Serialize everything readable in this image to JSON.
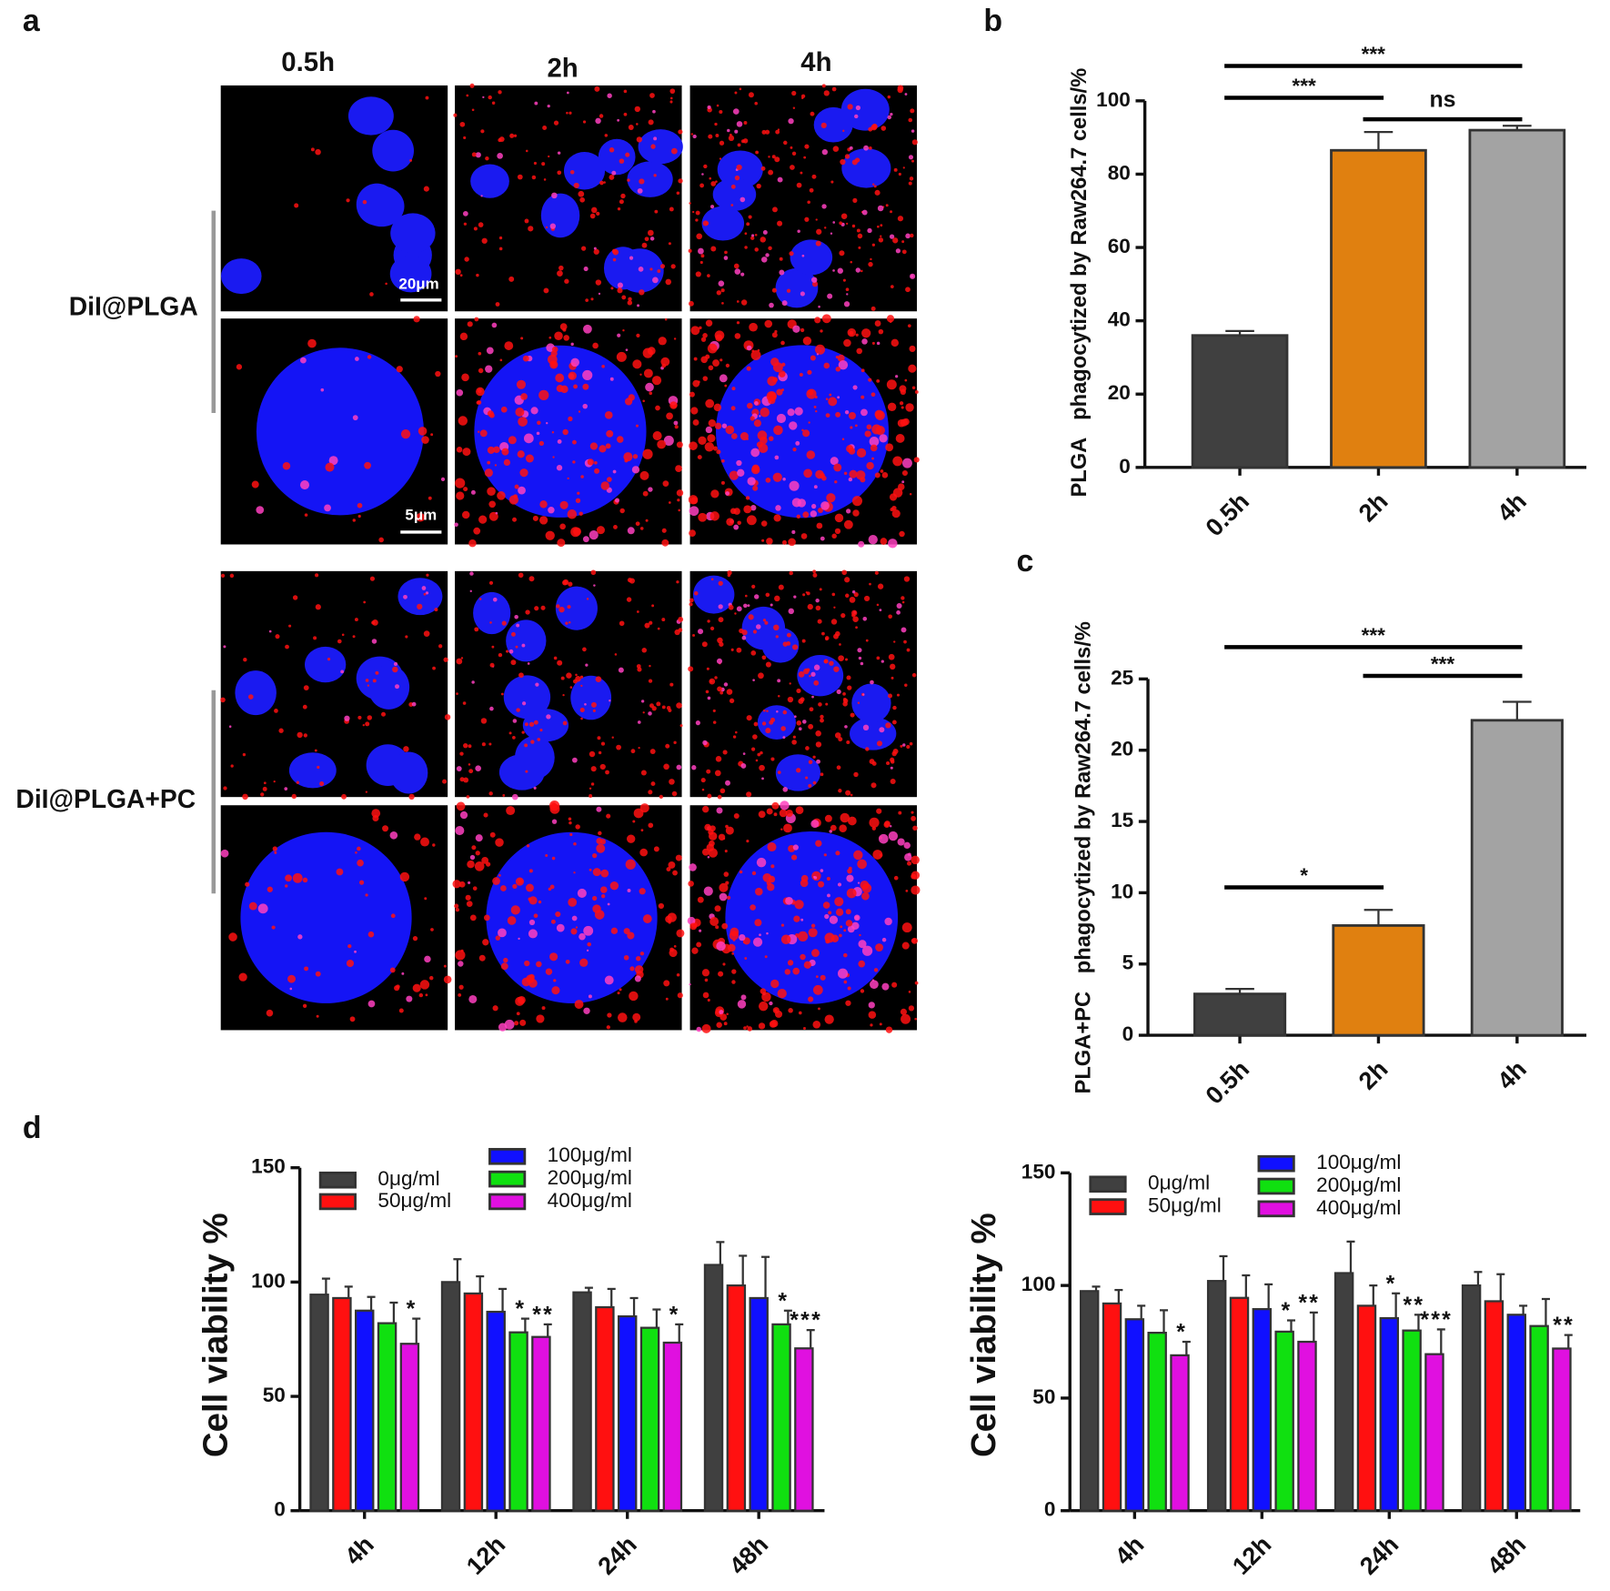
{
  "panel_labels": [
    "a",
    "b",
    "c",
    "d"
  ],
  "panel_a": {
    "columns": [
      "0.5h",
      "2h",
      "4h"
    ],
    "rows": [
      "DiI@PLGA",
      "DiI@PLGA+PC"
    ],
    "scale_bars": [
      "20μm",
      "5μm"
    ]
  },
  "chart_data": [
    {
      "type": "bar",
      "ylabel": "PLGA   phagocytized by Raw264.7 cells/%",
      "categories": [
        "0.5h",
        "2h",
        "4h"
      ],
      "values": [
        36,
        86.5,
        92
      ],
      "errors": [
        1.2,
        5,
        1.2
      ],
      "colors": [
        "#404040",
        "#e08010",
        "#a3a3a3"
      ],
      "ylim": [
        0,
        100
      ],
      "yticks": [
        0,
        20,
        40,
        60,
        80,
        100
      ],
      "comparisons": [
        {
          "label": "***",
          "between": [
            "0.5h",
            "4h"
          ]
        },
        {
          "label": "***",
          "between": [
            "0.5h",
            "2h"
          ]
        },
        {
          "label": "ns",
          "between": [
            "2h",
            "4h"
          ]
        }
      ]
    },
    {
      "type": "bar",
      "ylabel": "PLGA+PC   phagocytized by Raw264.7 cells/%",
      "categories": [
        "0.5h",
        "2h",
        "4h"
      ],
      "values": [
        2.9,
        7.7,
        22.1
      ],
      "errors": [
        0.35,
        1.1,
        1.3
      ],
      "colors": [
        "#404040",
        "#e08010",
        "#a3a3a3"
      ],
      "ylim": [
        0,
        25
      ],
      "yticks": [
        0,
        5,
        10,
        15,
        20,
        25
      ],
      "comparisons": [
        {
          "label": "***",
          "between": [
            "0.5h",
            "4h"
          ]
        },
        {
          "label": "***",
          "between": [
            "2h",
            "4h"
          ]
        },
        {
          "label": "*",
          "between": [
            "0.5h",
            "2h"
          ]
        }
      ]
    },
    {
      "type": "grouped-bar",
      "ylabel": "Cell viability %",
      "categories": [
        "4h",
        "12h",
        "24h",
        "48h"
      ],
      "ylim": [
        0,
        150
      ],
      "yticks": [
        0,
        50,
        100,
        150
      ],
      "series": [
        {
          "name": "0μg/ml",
          "color": "#404040",
          "values": [
            94.5,
            100,
            95.5,
            107.5
          ],
          "errors": [
            7,
            10,
            2,
            10
          ],
          "significance": [
            null,
            null,
            null,
            null
          ]
        },
        {
          "name": "50μg/ml",
          "color": "#ff1010",
          "values": [
            93,
            95,
            89,
            98.5
          ],
          "errors": [
            5,
            7.5,
            8,
            13
          ],
          "significance": [
            null,
            null,
            null,
            null
          ]
        },
        {
          "name": "100μg/ml",
          "color": "#1010ff",
          "values": [
            87.5,
            87,
            85,
            93
          ],
          "errors": [
            6,
            10,
            8,
            18
          ],
          "significance": [
            null,
            null,
            null,
            null
          ]
        },
        {
          "name": "200μg/ml",
          "color": "#10e010",
          "values": [
            82,
            78,
            80,
            81.5
          ],
          "errors": [
            9,
            6,
            8,
            6
          ],
          "significance": [
            null,
            "*",
            null,
            "*"
          ]
        },
        {
          "name": "400μg/ml",
          "color": "#e010e0",
          "values": [
            73,
            76,
            73.5,
            71
          ],
          "errors": [
            11,
            5.5,
            8,
            8
          ],
          "significance": [
            "*",
            "**",
            "*",
            "***"
          ]
        }
      ]
    },
    {
      "type": "grouped-bar",
      "ylabel": "Cell viability %",
      "categories": [
        "4h",
        "12h",
        "24h",
        "48h"
      ],
      "ylim": [
        0,
        150
      ],
      "yticks": [
        0,
        50,
        100,
        150
      ],
      "series": [
        {
          "name": "0μg/ml",
          "color": "#404040",
          "values": [
            97.5,
            102,
            105.5,
            100
          ],
          "errors": [
            2,
            11,
            14,
            6
          ],
          "significance": [
            null,
            null,
            null,
            null
          ]
        },
        {
          "name": "50μg/ml",
          "color": "#ff1010",
          "values": [
            92,
            94.5,
            91,
            93
          ],
          "errors": [
            6,
            10,
            9,
            12
          ],
          "significance": [
            null,
            null,
            null,
            null
          ]
        },
        {
          "name": "100μg/ml",
          "color": "#1010ff",
          "values": [
            85,
            89.5,
            85.5,
            87
          ],
          "errors": [
            6,
            11,
            11,
            4
          ],
          "significance": [
            null,
            null,
            "*",
            null
          ]
        },
        {
          "name": "200μg/ml",
          "color": "#10e010",
          "values": [
            79,
            79.5,
            80,
            82
          ],
          "errors": [
            10,
            5,
            7,
            12
          ],
          "significance": [
            null,
            "*",
            "**",
            null
          ]
        },
        {
          "name": "400μg/ml",
          "color": "#e010e0",
          "values": [
            69,
            75,
            69.5,
            72
          ],
          "errors": [
            6,
            13,
            11,
            6
          ],
          "significance": [
            "*",
            "**",
            "***",
            "**"
          ]
        }
      ]
    }
  ]
}
